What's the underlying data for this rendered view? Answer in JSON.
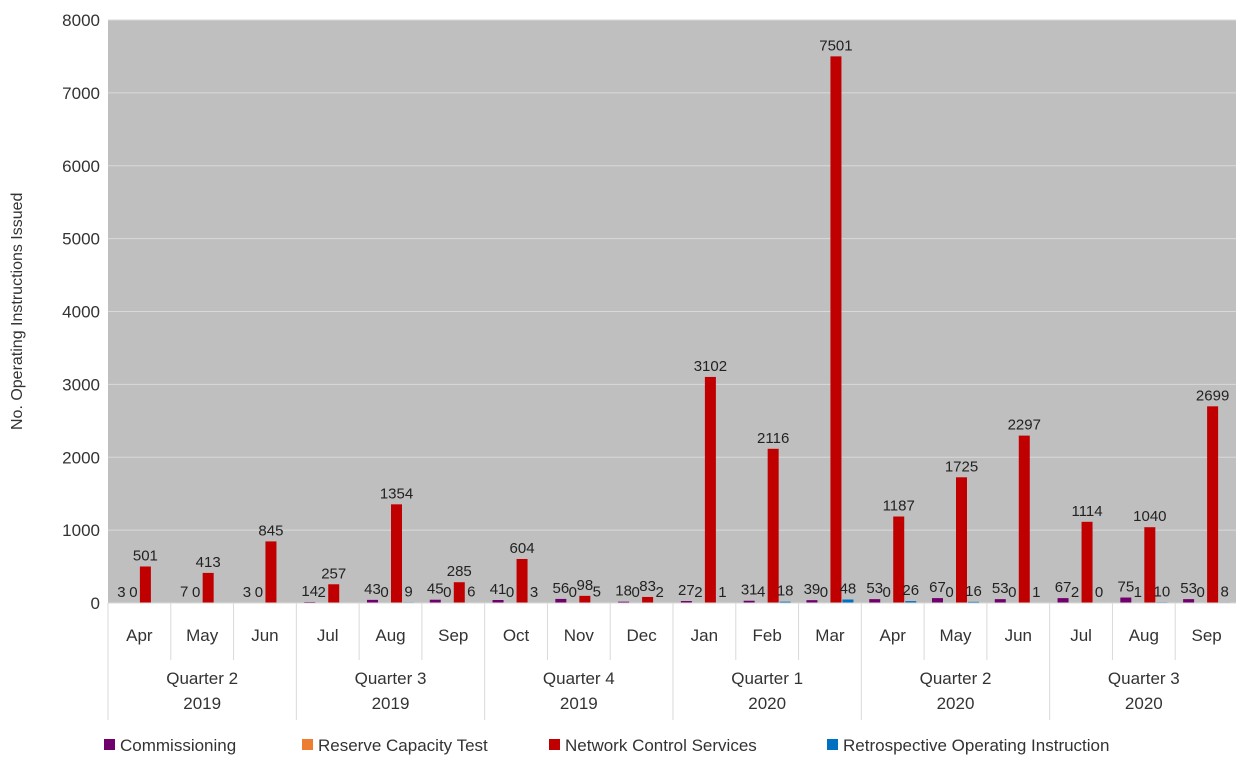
{
  "chart_data": {
    "type": "bar",
    "ylabel": "No. Operating Instructions Issued",
    "ylim": [
      0,
      8000
    ],
    "yticks": [
      0,
      1000,
      2000,
      3000,
      4000,
      5000,
      6000,
      7000,
      8000
    ],
    "grid": true,
    "legend_position": "bottom",
    "categories": [
      "Apr",
      "May",
      "Jun",
      "Jul",
      "Aug",
      "Sep",
      "Oct",
      "Nov",
      "Dec",
      "Jan",
      "Feb",
      "Mar",
      "Apr",
      "May",
      "Jun",
      "Jul",
      "Aug",
      "Sep"
    ],
    "groups": [
      {
        "line1": "Quarter 2",
        "line2": "2019",
        "count": 3
      },
      {
        "line1": "Quarter 3",
        "line2": "2019",
        "count": 3
      },
      {
        "line1": "Quarter 4",
        "line2": "2019",
        "count": 3
      },
      {
        "line1": "Quarter 1",
        "line2": "2020",
        "count": 3
      },
      {
        "line1": "Quarter 2",
        "line2": "2020",
        "count": 3
      },
      {
        "line1": "Quarter 3",
        "line2": "2020",
        "count": 3
      }
    ],
    "series": [
      {
        "name": "Commissioning",
        "color": "#70006b",
        "values": [
          3,
          7,
          3,
          14,
          43,
          45,
          41,
          56,
          18,
          27,
          31,
          39,
          53,
          67,
          53,
          67,
          75,
          53
        ]
      },
      {
        "name": "Reserve Capacity Test",
        "color": "#ed7d31",
        "values": [
          0,
          0,
          0,
          2,
          0,
          0,
          0,
          0,
          0,
          2,
          4,
          0,
          0,
          0,
          0,
          2,
          1,
          0
        ]
      },
      {
        "name": "Network Control Services",
        "color": "#c00000",
        "values": [
          501,
          413,
          845,
          257,
          1354,
          285,
          604,
          98,
          83,
          3102,
          2116,
          7501,
          1187,
          1725,
          2297,
          1114,
          1040,
          2699
        ]
      },
      {
        "name": "Retrospective Operating Instruction",
        "color": "#0070c0",
        "values": [
          null,
          null,
          null,
          null,
          9,
          6,
          3,
          5,
          2,
          1,
          18,
          48,
          26,
          16,
          1,
          0,
          10,
          8
        ]
      }
    ]
  }
}
